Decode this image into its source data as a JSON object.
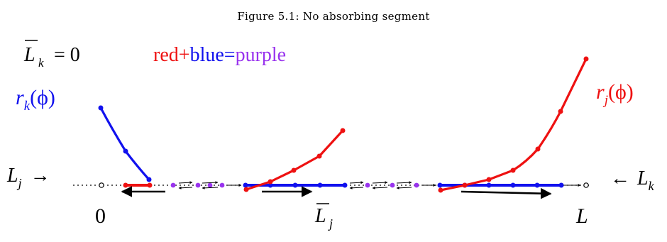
{
  "caption": "Figure 5.1: No absorbing segment",
  "labels": {
    "lbar_k_eq": "= 0",
    "legend_red": "red",
    "legend_plus1": "+",
    "legend_blue": "blue",
    "legend_eq": "=",
    "legend_purple": "purple",
    "r_k": "r",
    "r_k_sub": "k",
    "r_k_arg": "(ϕ)",
    "r_j": "r",
    "r_j_sub": "j",
    "r_j_arg": "(ϕ)",
    "L_j": "L",
    "L_j_sub": "j",
    "L_j_arrow": "→",
    "L_k_arrow": "←",
    "L_k": "L",
    "L_k_sub": "k",
    "zero": "0",
    "Lbar_j": "L",
    "Lbar_j_sub": "j",
    "L_end": "L"
  },
  "colors": {
    "red": "#ee1111",
    "blue": "#1111ee",
    "purple": "#9933ee",
    "black": "#000000"
  }
}
